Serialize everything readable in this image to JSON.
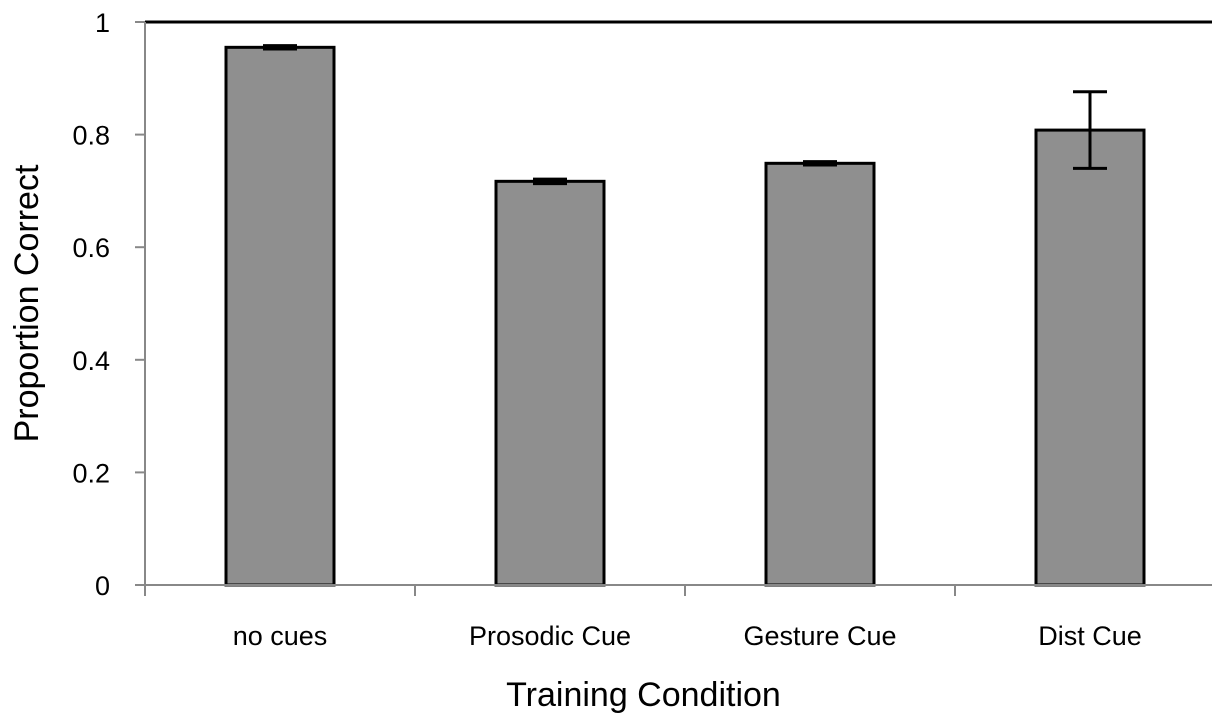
{
  "chart_data": {
    "type": "bar",
    "title": "",
    "xlabel": "Training Condition",
    "ylabel": "Proportion Correct",
    "categories": [
      "no cues",
      "Prosodic Cue",
      "Gesture Cue",
      "Dist Cue"
    ],
    "values": [
      0.955,
      0.717,
      0.749,
      0.808
    ],
    "error": [
      0.003,
      0.004,
      0.003,
      0.068
    ],
    "ylim": [
      0,
      1
    ],
    "yticks": [
      {
        "value": 0,
        "label": "0"
      },
      {
        "value": 0.2,
        "label": "0.2"
      },
      {
        "value": 0.4,
        "label": "0.4"
      },
      {
        "value": 0.6,
        "label": "0.6"
      },
      {
        "value": 0.8,
        "label": "0.8"
      },
      {
        "value": 1,
        "label": "1"
      }
    ],
    "grid": false,
    "bar_color": "#8f8f8f",
    "bar_edge_color": "#000000"
  }
}
